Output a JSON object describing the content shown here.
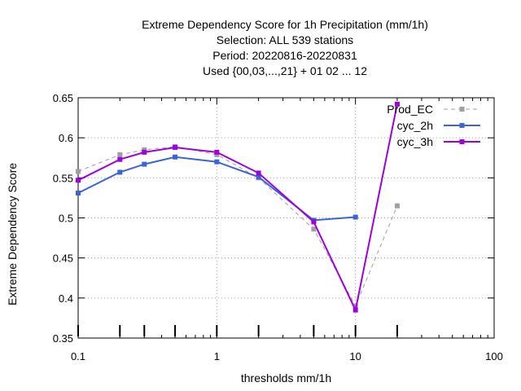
{
  "chart_data": {
    "type": "line",
    "title_lines": [
      "Extreme Dependency Score  for 1h Precipitation (mm/1h)",
      "Selection: ALL    539 stations",
      "Period: 20220816-20220831",
      "Used {00,03,...,21} + 01 02 ... 12"
    ],
    "xlabel": "thresholds mm/1h",
    "ylabel": "Extreme Dependency Score",
    "x_scale": "log",
    "xlim": [
      0.1,
      100
    ],
    "ylim": [
      0.35,
      0.65
    ],
    "x_ticks": [
      {
        "value": 0.1,
        "label": "0.1"
      },
      {
        "value": 1,
        "label": "1"
      },
      {
        "value": 10,
        "label": "10"
      },
      {
        "value": 100,
        "label": "100"
      }
    ],
    "y_ticks": [
      {
        "value": 0.35,
        "label": "0.35"
      },
      {
        "value": 0.4,
        "label": "0.4"
      },
      {
        "value": 0.45,
        "label": "0.45"
      },
      {
        "value": 0.5,
        "label": "0.5"
      },
      {
        "value": 0.55,
        "label": "0.55"
      },
      {
        "value": 0.6,
        "label": "0.6"
      },
      {
        "value": 0.65,
        "label": "0.65"
      }
    ],
    "threshold_marks": [
      0.1,
      0.2,
      0.3,
      0.5,
      1,
      2,
      5,
      10,
      20
    ],
    "grid": true,
    "legend_position": "top-right",
    "series": [
      {
        "name": "Prod_EC",
        "color": "#a0a0a0",
        "dashed": true,
        "points": [
          [
            0.1,
            0.558
          ],
          [
            0.2,
            0.579
          ],
          [
            0.3,
            0.585
          ],
          [
            0.5,
            0.589
          ],
          [
            1,
            0.579
          ],
          [
            2,
            0.55
          ],
          [
            5,
            0.486
          ],
          [
            10,
            0.39
          ],
          [
            20,
            0.515
          ]
        ]
      },
      {
        "name": "cyc_2h",
        "color": "#3a64d8",
        "dashed": false,
        "points": [
          [
            0.1,
            0.531
          ],
          [
            0.2,
            0.557
          ],
          [
            0.3,
            0.567
          ],
          [
            0.5,
            0.576
          ],
          [
            1,
            0.57
          ],
          [
            2,
            0.551
          ],
          [
            5,
            0.497
          ],
          [
            10,
            0.501
          ]
        ]
      },
      {
        "name": "cyc_3h",
        "color": "#a000e0",
        "dashed": false,
        "points": [
          [
            0.1,
            0.547
          ],
          [
            0.2,
            0.573
          ],
          [
            0.3,
            0.582
          ],
          [
            0.5,
            0.588
          ],
          [
            1,
            0.582
          ],
          [
            2,
            0.556
          ],
          [
            5,
            0.495
          ],
          [
            10,
            0.385
          ],
          [
            20,
            0.642
          ]
        ]
      }
    ]
  }
}
